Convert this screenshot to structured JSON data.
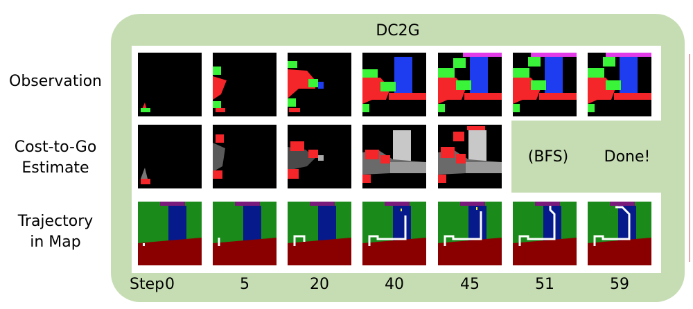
{
  "figure": {
    "title": "DC2G",
    "rows": [
      {
        "label_lines": [
          "Observation"
        ]
      },
      {
        "label_lines": [
          "Cost-to-Go",
          "Estimate"
        ]
      },
      {
        "label_lines": [
          "Trajectory",
          "in Map"
        ]
      }
    ],
    "step_label": "Step",
    "steps": [
      "0",
      "5",
      "20",
      "40",
      "45",
      "51",
      "59"
    ],
    "cost_to_go_texts": [
      "(BFS)",
      "Done!"
    ]
  },
  "colors": {
    "panel_bg": "#c6ddb3",
    "obs_green": "#39f439",
    "obs_red": "#f4262a",
    "obs_blue": "#1e3df0",
    "obs_magenta": "#e23ce8",
    "map_green": "#1a8a1a",
    "map_darkred": "#8a0000",
    "map_navy": "#061a8c",
    "map_purple": "#7a1a7a",
    "path_white": "#ffffff"
  }
}
